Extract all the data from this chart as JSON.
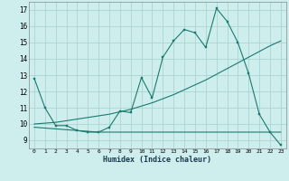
{
  "xlabel": "Humidex (Indice chaleur)",
  "bg_color": "#ceeeed",
  "grid_color": "#aad4d2",
  "line_color": "#1a7a6e",
  "xlim": [
    -0.5,
    23.5
  ],
  "ylim": [
    8.5,
    17.5
  ],
  "xticks": [
    0,
    1,
    2,
    3,
    4,
    5,
    6,
    7,
    8,
    9,
    10,
    11,
    12,
    13,
    14,
    15,
    16,
    17,
    18,
    19,
    20,
    21,
    22,
    23
  ],
  "yticks": [
    9,
    10,
    11,
    12,
    13,
    14,
    15,
    16,
    17
  ],
  "line1_x": [
    0,
    1,
    2,
    3,
    4,
    5,
    6,
    7,
    8,
    9,
    10,
    11,
    12,
    13,
    14,
    15,
    16,
    17,
    18,
    19,
    20,
    21,
    22,
    23
  ],
  "line1_y": [
    12.8,
    11.0,
    9.9,
    9.9,
    9.6,
    9.5,
    9.5,
    9.8,
    10.8,
    10.7,
    12.85,
    11.6,
    14.1,
    15.1,
    15.8,
    15.6,
    14.7,
    17.1,
    16.3,
    15.0,
    13.1,
    10.6,
    9.5,
    8.7
  ],
  "line2_x": [
    0,
    1,
    2,
    3,
    4,
    5,
    6,
    7,
    8,
    9,
    10,
    11,
    12,
    13,
    14,
    15,
    16,
    17,
    18,
    19,
    20,
    21,
    22,
    23
  ],
  "line2_y": [
    10.0,
    10.05,
    10.1,
    10.2,
    10.3,
    10.4,
    10.5,
    10.6,
    10.75,
    10.9,
    11.1,
    11.3,
    11.55,
    11.8,
    12.1,
    12.4,
    12.7,
    13.05,
    13.4,
    13.75,
    14.1,
    14.45,
    14.8,
    15.1
  ],
  "line3_x": [
    0,
    1,
    2,
    3,
    4,
    5,
    6,
    7,
    8,
    9,
    10,
    11,
    12,
    13,
    14,
    15,
    16,
    17,
    18,
    19,
    20,
    21,
    22,
    23
  ],
  "line3_y": [
    9.8,
    9.75,
    9.7,
    9.65,
    9.6,
    9.55,
    9.5,
    9.5,
    9.5,
    9.5,
    9.5,
    9.5,
    9.5,
    9.5,
    9.5,
    9.5,
    9.5,
    9.5,
    9.5,
    9.5,
    9.5,
    9.5,
    9.5,
    9.5
  ]
}
